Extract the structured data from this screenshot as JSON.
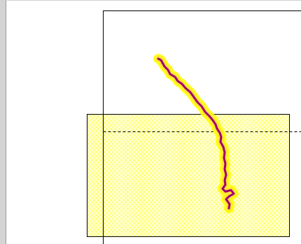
{
  "window": {
    "title": ""
  },
  "canvas": {
    "background": "#ffffff",
    "scrollbar_color": "#d4d4d4"
  },
  "layers": {
    "page_extent": {
      "stroke": "#000000",
      "style": "solid"
    },
    "selection_region": {
      "fill": "#ffffc0",
      "pattern_dot": "#ffff66",
      "stroke": "#000000"
    },
    "overlap_guide": {
      "stroke": "#000000",
      "style": "dashed"
    },
    "route_track": {
      "line_color": "#a0006e",
      "halo_outer": "#ffff00",
      "halo_inner": "#ffee55"
    }
  }
}
